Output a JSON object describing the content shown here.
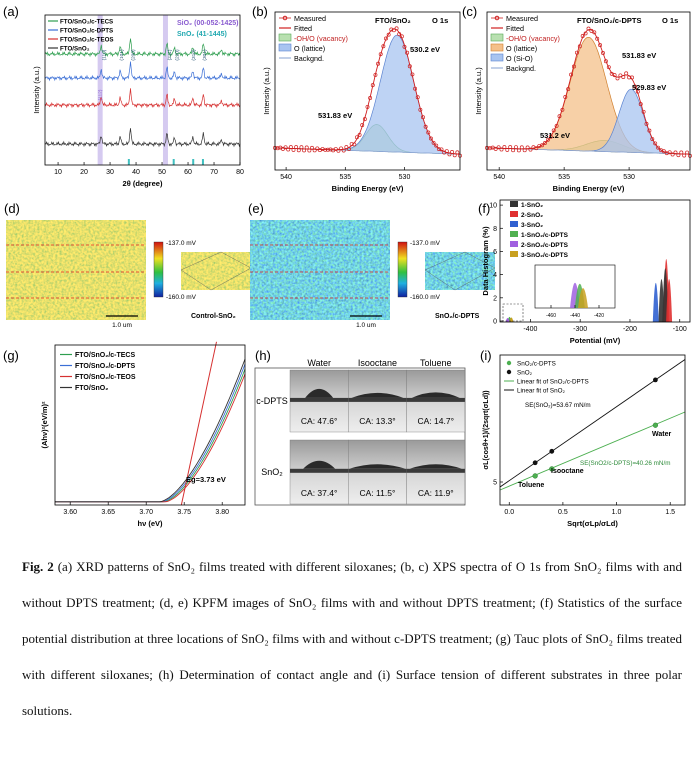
{
  "figure": {
    "a": {
      "label": "(a)",
      "legend": [
        "FTO/SnO₂/c-TECS",
        "FTO/SnO₂/c-DPTS",
        "FTO/SnO₂/c-TEOS",
        "FTO/SnO₂"
      ],
      "annotations": [
        "SiO₂ (00-052-1425)",
        "SnO₂ (41-1445)"
      ],
      "peaks": [
        "(110)",
        "(101)",
        "(200)",
        "(211)",
        "(220)",
        "(310)",
        "(301)",
        "(112)"
      ],
      "xticks": [
        "10",
        "20",
        "30",
        "40",
        "50",
        "60",
        "70",
        "80"
      ],
      "xlabel": "2θ (degree)",
      "ylabel": "Intensity (a.u.)"
    },
    "b": {
      "label": "(b)",
      "title": "FTO/SnO₂",
      "subtitle": "O 1s",
      "legend": [
        "Measured",
        "Fitted",
        "-OH/O (vacancy)",
        "O (lattice)",
        "Backgnd."
      ],
      "annotations": [
        "530.2 eV",
        "531.83 eV"
      ],
      "xticks": [
        "540",
        "535",
        "530"
      ],
      "xlabel": "Binding Energy (eV)",
      "ylabel": "Intensity (a.u.)"
    },
    "c": {
      "label": "(c)",
      "title": "FTO/SnO₂/c-DPTS",
      "subtitle": "O 1s",
      "legend": [
        "Measured",
        "Fitted",
        "-OH/O (vacancy)",
        "O (lattice)",
        "O (Si-O)",
        "Backgnd."
      ],
      "annotations": [
        "531.83 eV",
        "529.83 eV",
        "531.2 eV"
      ],
      "xticks": [
        "540",
        "535",
        "530"
      ],
      "xlabel": "Binding Energy (eV)",
      "ylabel": "Intensity (a.u.)"
    },
    "d": {
      "label": "(d)",
      "scale_max": "-137.0 mV",
      "scale_min": "-160.0 mV",
      "scale_bar": "1.0 um",
      "caption": "Control-SnO₂"
    },
    "e": {
      "label": "(e)",
      "scale_max": "-137.0 mV",
      "scale_min": "-160.0 mV",
      "scale_bar": "1.0 um",
      "caption": "SnO₂/c-DPTS"
    },
    "f": {
      "label": "(f)",
      "legend": [
        "1-SnO₂",
        "2-SnO₂",
        "3-SnO₂",
        "1-SnO₂/c-DPTS",
        "2-SnO₂/c-DPTS",
        "3-SnO₂/c-DPTS"
      ],
      "xticks": [
        "-400",
        "-300",
        "-200",
        "-100"
      ],
      "yticks": [
        "0",
        "2",
        "4",
        "6",
        "8",
        "10"
      ],
      "inset_xticks": [
        "-460",
        "-440",
        "-420"
      ],
      "xlabel": "Potential (mV)",
      "ylabel": "Data Histogram (%)"
    },
    "g": {
      "label": "(g)",
      "legend": [
        "FTO/SnO₂/c-TECS",
        "FTO/SnO₂/c-DPTS",
        "FTO/SnO₂/c-TEOS",
        "FTO/SnO₂"
      ],
      "annotation": "Eg=3.73 eV",
      "xticks": [
        "3.60",
        "3.65",
        "3.70",
        "3.75",
        "3.80"
      ],
      "xlabel": "hν (eV)",
      "ylabel": "(Ahν)²(eV/m)²"
    },
    "h": {
      "label": "(h)",
      "columns": [
        "Water",
        "Isooctane",
        "Toluene"
      ],
      "rows": [
        {
          "name": "c-DPTS",
          "angles": [
            "CA: 47.6°",
            "CA: 13.3°",
            "CA: 14.7°"
          ]
        },
        {
          "name": "SnO₂",
          "angles": [
            "CA: 37.4°",
            "CA: 11.5°",
            "CA: 11.9°"
          ]
        }
      ]
    },
    "i": {
      "label": "(i)",
      "legend": [
        "SnO₂/c-DPTS",
        "SnO₂",
        "Linear fit of SnO₂/c-DPTS",
        "Linear fit of SnO₂"
      ],
      "annotations": [
        "SE(SnO₂)=53.67 mN/m",
        "SE(SnO2/c-DPTS)=40.26 mN/m"
      ],
      "solvents": [
        "Water",
        "Isooctane",
        "Toluene"
      ],
      "xticks": [
        "0.0",
        "0.5",
        "1.0",
        "1.5"
      ],
      "yticks": [
        "5"
      ],
      "xlabel": "Sqrt(σLp/σLd)",
      "ylabel": "σL(cosθ+1)/(2sqrt(σLd))"
    }
  },
  "caption": {
    "label": "Fig. 2",
    "text": "(a) XRD patterns of SnO₂ films treated with different siloxanes; (b, c) XPS spectra of O 1s from SnO₂ films with and without DPTS treatment; (d, e) KPFM images of SnO₂ films with and without DPTS treatment; (f) Statistics of the surface potential distribution at three locations of SnO₂ films with and without c-DPTS treatment; (g) Tauc plots of SnO₂ films treated with different siloxanes; (h) Determination of contact angle and (i) Surface tension of different substrates in three polar solutions."
  }
}
